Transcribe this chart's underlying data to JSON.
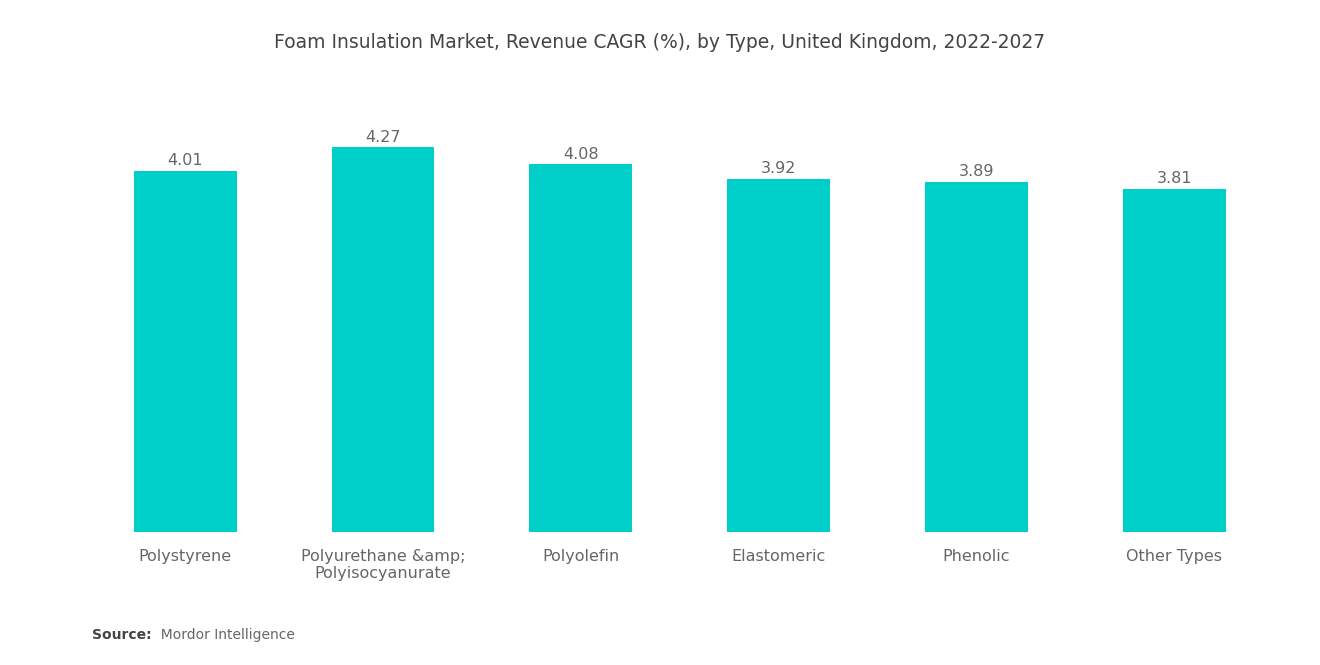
{
  "title": "Foam Insulation Market, Revenue CAGR (%), by Type, United Kingdom, 2022-2027",
  "categories": [
    "Polystyrene",
    "Polyurethane &amp;\nPolyisocyanurate",
    "Polyolefin",
    "Elastomeric",
    "Phenolic",
    "Other Types"
  ],
  "values": [
    4.01,
    4.27,
    4.08,
    3.92,
    3.89,
    3.81
  ],
  "bar_color": "#00CEC9",
  "background_color": "#ffffff",
  "title_fontsize": 13.5,
  "label_fontsize": 11.5,
  "value_fontsize": 11.5,
  "source_bold": "Source:",
  "source_rest": "  Mordor Intelligence",
  "ylim": [
    0,
    4.65
  ],
  "bar_width": 0.52
}
